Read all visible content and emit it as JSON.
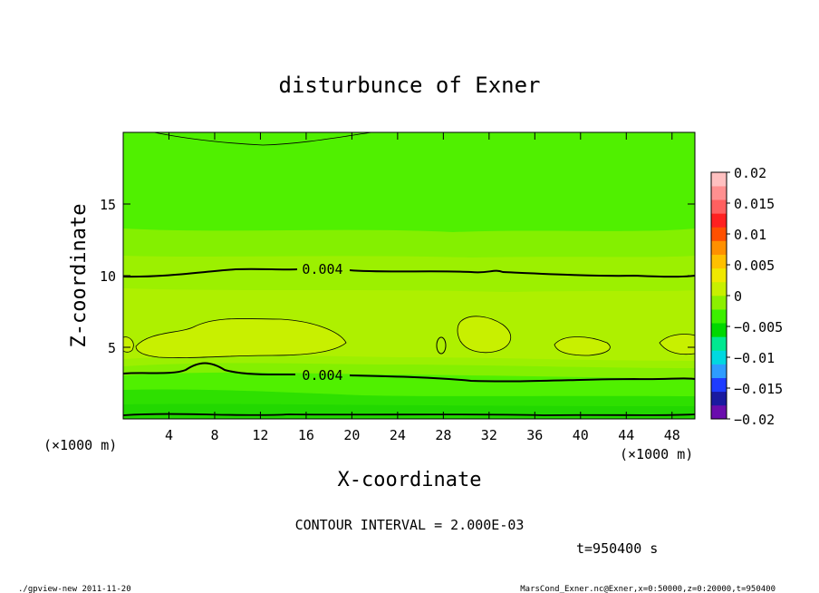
{
  "chart_data": {
    "type": "heatmap",
    "title": "disturbunce of Exner",
    "xlabel": "X-coordinate",
    "ylabel": "Z-coordinate",
    "x_unit": "(×1000 m)",
    "y_unit": "(×1000 m)",
    "xlim": [
      0,
      50
    ],
    "ylim": [
      0,
      20
    ],
    "x_ticks": [
      "4",
      "8",
      "12",
      "16",
      "20",
      "24",
      "28",
      "32",
      "36",
      "40",
      "44",
      "48"
    ],
    "y_ticks": [
      "5",
      "10",
      "15"
    ],
    "contour_interval_text": "CONTOUR INTERVAL = 2.000E-03",
    "time_text": "t=950400 s",
    "contour_labels": [
      "0.004",
      "0.004"
    ],
    "colorbar": {
      "labels": [
        "0.02",
        "0.015",
        "0.01",
        "0.005",
        "0",
        "−0.005",
        "−0.01",
        "−0.015",
        "−0.02"
      ],
      "colors": [
        "#6a0dad",
        "#1a1aa0",
        "#1e3cff",
        "#2e9cff",
        "#00d8e0",
        "#00e890",
        "#00d800",
        "#3cf000",
        "#8cf000",
        "#c8f000",
        "#f0e800",
        "#ffc000",
        "#ff9000",
        "#ff5000",
        "#ff2020",
        "#ff6060",
        "#ff9090",
        "#ffc0c0"
      ]
    },
    "footer_left": "./gpview-new  2011-11-20",
    "footer_right": "MarsCond_Exner.nc@Exner,x=0:50000,z=0:20000,t=950400"
  }
}
